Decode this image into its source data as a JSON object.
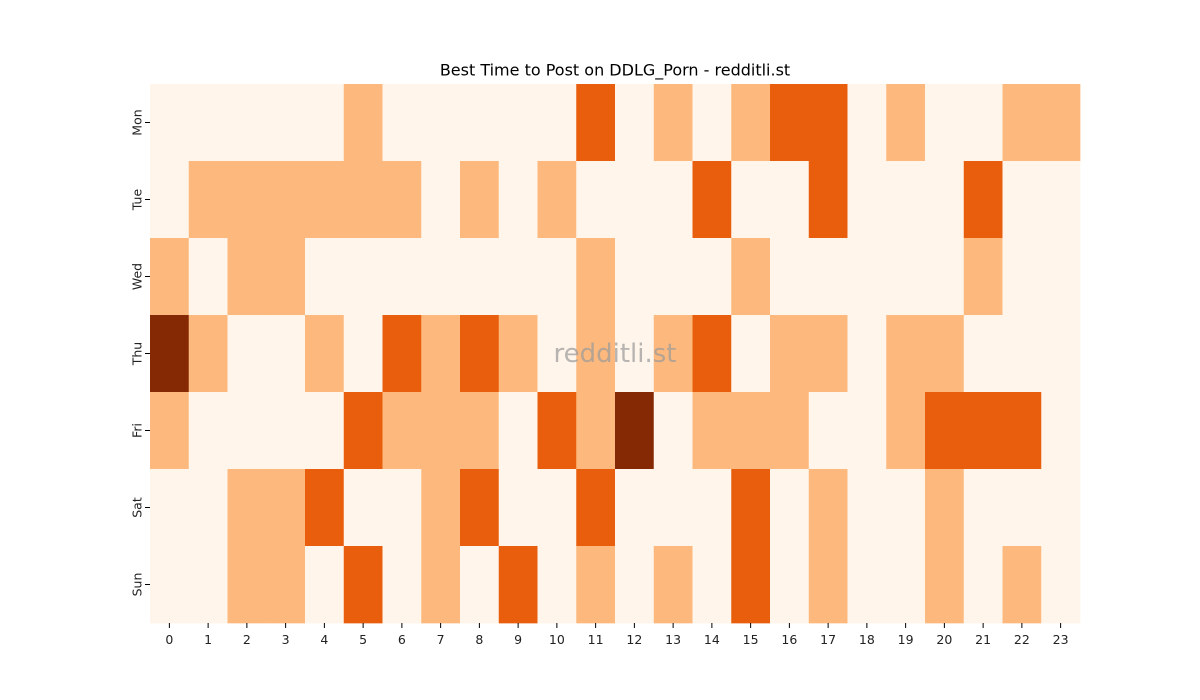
{
  "chart_data": {
    "type": "heatmap",
    "title": "Best Time to Post on DDLG_Porn - redditli.st",
    "watermark": "redditli.st",
    "xlabel": "",
    "ylabel": "",
    "x_categories": [
      "0",
      "1",
      "2",
      "3",
      "4",
      "5",
      "6",
      "7",
      "8",
      "9",
      "10",
      "11",
      "12",
      "13",
      "14",
      "15",
      "16",
      "17",
      "18",
      "19",
      "20",
      "21",
      "22",
      "23"
    ],
    "y_categories": [
      "Mon",
      "Tue",
      "Wed",
      "Thu",
      "Fri",
      "Sat",
      "Sun"
    ],
    "values": [
      [
        0,
        0,
        0,
        0,
        0,
        1,
        0,
        0,
        0,
        0,
        0,
        2,
        0,
        1,
        0,
        1,
        2,
        2,
        0,
        1,
        0,
        0,
        1,
        1
      ],
      [
        0,
        1,
        1,
        1,
        1,
        1,
        1,
        0,
        1,
        0,
        1,
        0,
        0,
        0,
        2,
        0,
        0,
        2,
        0,
        0,
        0,
        2,
        0,
        0
      ],
      [
        1,
        0,
        1,
        1,
        0,
        0,
        0,
        0,
        0,
        0,
        0,
        1,
        0,
        0,
        0,
        1,
        0,
        0,
        0,
        0,
        0,
        1,
        0,
        0
      ],
      [
        3,
        1,
        0,
        0,
        1,
        0,
        2,
        1,
        2,
        1,
        0,
        1,
        0,
        1,
        2,
        0,
        1,
        1,
        0,
        1,
        1,
        0,
        0,
        0
      ],
      [
        1,
        0,
        0,
        0,
        0,
        2,
        1,
        1,
        1,
        0,
        2,
        1,
        3,
        0,
        1,
        1,
        1,
        0,
        0,
        1,
        2,
        2,
        2,
        0
      ],
      [
        0,
        0,
        1,
        1,
        2,
        0,
        0,
        1,
        2,
        0,
        0,
        2,
        0,
        0,
        0,
        2,
        0,
        1,
        0,
        0,
        1,
        0,
        0,
        0
      ],
      [
        0,
        0,
        1,
        1,
        0,
        2,
        0,
        1,
        0,
        2,
        0,
        1,
        0,
        1,
        0,
        2,
        0,
        1,
        0,
        0,
        1,
        0,
        1,
        0
      ]
    ],
    "color_scale": [
      "#fff5eb",
      "#fdb97d",
      "#e95e0d",
      "#842904"
    ],
    "grid": false,
    "legend": "none"
  }
}
